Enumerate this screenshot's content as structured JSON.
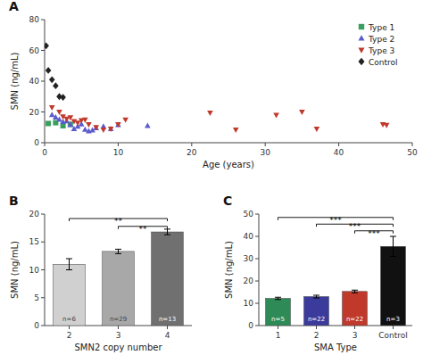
{
  "chart_data": [
    {
      "type": "scatter",
      "title": "A",
      "x_label": "Age (years)",
      "y_label": "SMN (ng/mL)",
      "xlim": [
        0,
        50
      ],
      "ylim": [
        0,
        80
      ],
      "xticks": [
        0,
        10,
        20,
        30,
        40,
        50
      ],
      "yticks": [
        0,
        20,
        40,
        60,
        80
      ],
      "legend": "upper right",
      "series": [
        {
          "name": "Type 1",
          "color": "#3a9e5f",
          "marker": "square",
          "x": [
            0.5,
            1.5,
            2.5,
            3.5
          ],
          "values": [
            12.5,
            13.0,
            11.0,
            12.0
          ]
        },
        {
          "name": "Type 2",
          "color": "#5b5bcc",
          "marker": "triangle-up",
          "x": [
            1.0,
            1.5,
            2.0,
            2.5,
            3.0,
            3.5,
            4.0,
            4.5,
            5.0,
            5.5,
            6.0,
            6.5,
            7.0,
            8.0,
            9.0,
            10.0,
            14.0
          ],
          "values": [
            18.0,
            16.5,
            15.0,
            13.5,
            14.0,
            11.5,
            9.0,
            10.5,
            12.0,
            8.5,
            7.5,
            8.0,
            9.5,
            10.5,
            9.0,
            11.5,
            11.0
          ]
        },
        {
          "name": "Type 3",
          "color": "#c0392b",
          "marker": "triangle-down",
          "x": [
            1.0,
            2.0,
            2.5,
            3.0,
            3.5,
            4.0,
            4.5,
            5.0,
            5.5,
            6.0,
            7.0,
            8.0,
            9.0,
            10.0,
            11.0,
            22.5,
            26.0,
            31.5,
            35.0,
            37.0,
            46.0,
            46.5
          ],
          "values": [
            23.0,
            20.0,
            17.0,
            15.5,
            16.5,
            14.0,
            13.0,
            14.5,
            15.0,
            12.0,
            10.0,
            8.5,
            9.0,
            12.0,
            15.0,
            19.5,
            8.5,
            18.0,
            20.0,
            9.0,
            12.0,
            11.5
          ]
        },
        {
          "name": "Control",
          "color": "#222222",
          "marker": "diamond",
          "x": [
            0.2,
            0.5,
            1.0,
            1.5,
            2.0,
            2.5
          ],
          "values": [
            63.0,
            47.0,
            41.0,
            37.0,
            30.0,
            29.5
          ]
        }
      ]
    },
    {
      "type": "bar",
      "title": "B",
      "x_label": "SMN2 copy number",
      "y_label": "SMN (ng/mL)",
      "categories": [
        "2",
        "3",
        "4"
      ],
      "values": [
        11.0,
        13.3,
        16.8
      ],
      "errors": [
        1.0,
        0.4,
        0.5
      ],
      "colors": [
        "#d0d0d0",
        "#a8a8a8",
        "#707070"
      ],
      "annotations": [
        "n=6",
        "n=29",
        "n=13"
      ],
      "ylim": [
        0,
        20
      ],
      "yticks": [
        0,
        5,
        10,
        15,
        20
      ],
      "significance": [
        {
          "from": "2",
          "to": "4",
          "y": 19.2,
          "label": "**"
        },
        {
          "from": "3",
          "to": "4",
          "y": 17.8,
          "label": "**"
        }
      ]
    },
    {
      "type": "bar",
      "title": "C",
      "x_label": "SMA Type",
      "y_label": "SMN (ng/mL)",
      "categories": [
        "1",
        "2",
        "3",
        "Control"
      ],
      "values": [
        12.2,
        13.0,
        15.3,
        35.5
      ],
      "errors": [
        0.5,
        0.6,
        0.6,
        4.5
      ],
      "colors": [
        "#2e8b57",
        "#3b3b9c",
        "#c0392b",
        "#111111"
      ],
      "annotations": [
        "n=5",
        "n=22",
        "n=22",
        "n=3"
      ],
      "ylim": [
        0,
        50
      ],
      "yticks": [
        0,
        10,
        20,
        30,
        40,
        50
      ],
      "significance": [
        {
          "from": "1",
          "to": "Control",
          "y": 48.5,
          "label": "***"
        },
        {
          "from": "2",
          "to": "Control",
          "y": 45.5,
          "label": "***"
        },
        {
          "from": "3",
          "to": "Control",
          "y": 42.5,
          "label": "***"
        }
      ]
    }
  ]
}
